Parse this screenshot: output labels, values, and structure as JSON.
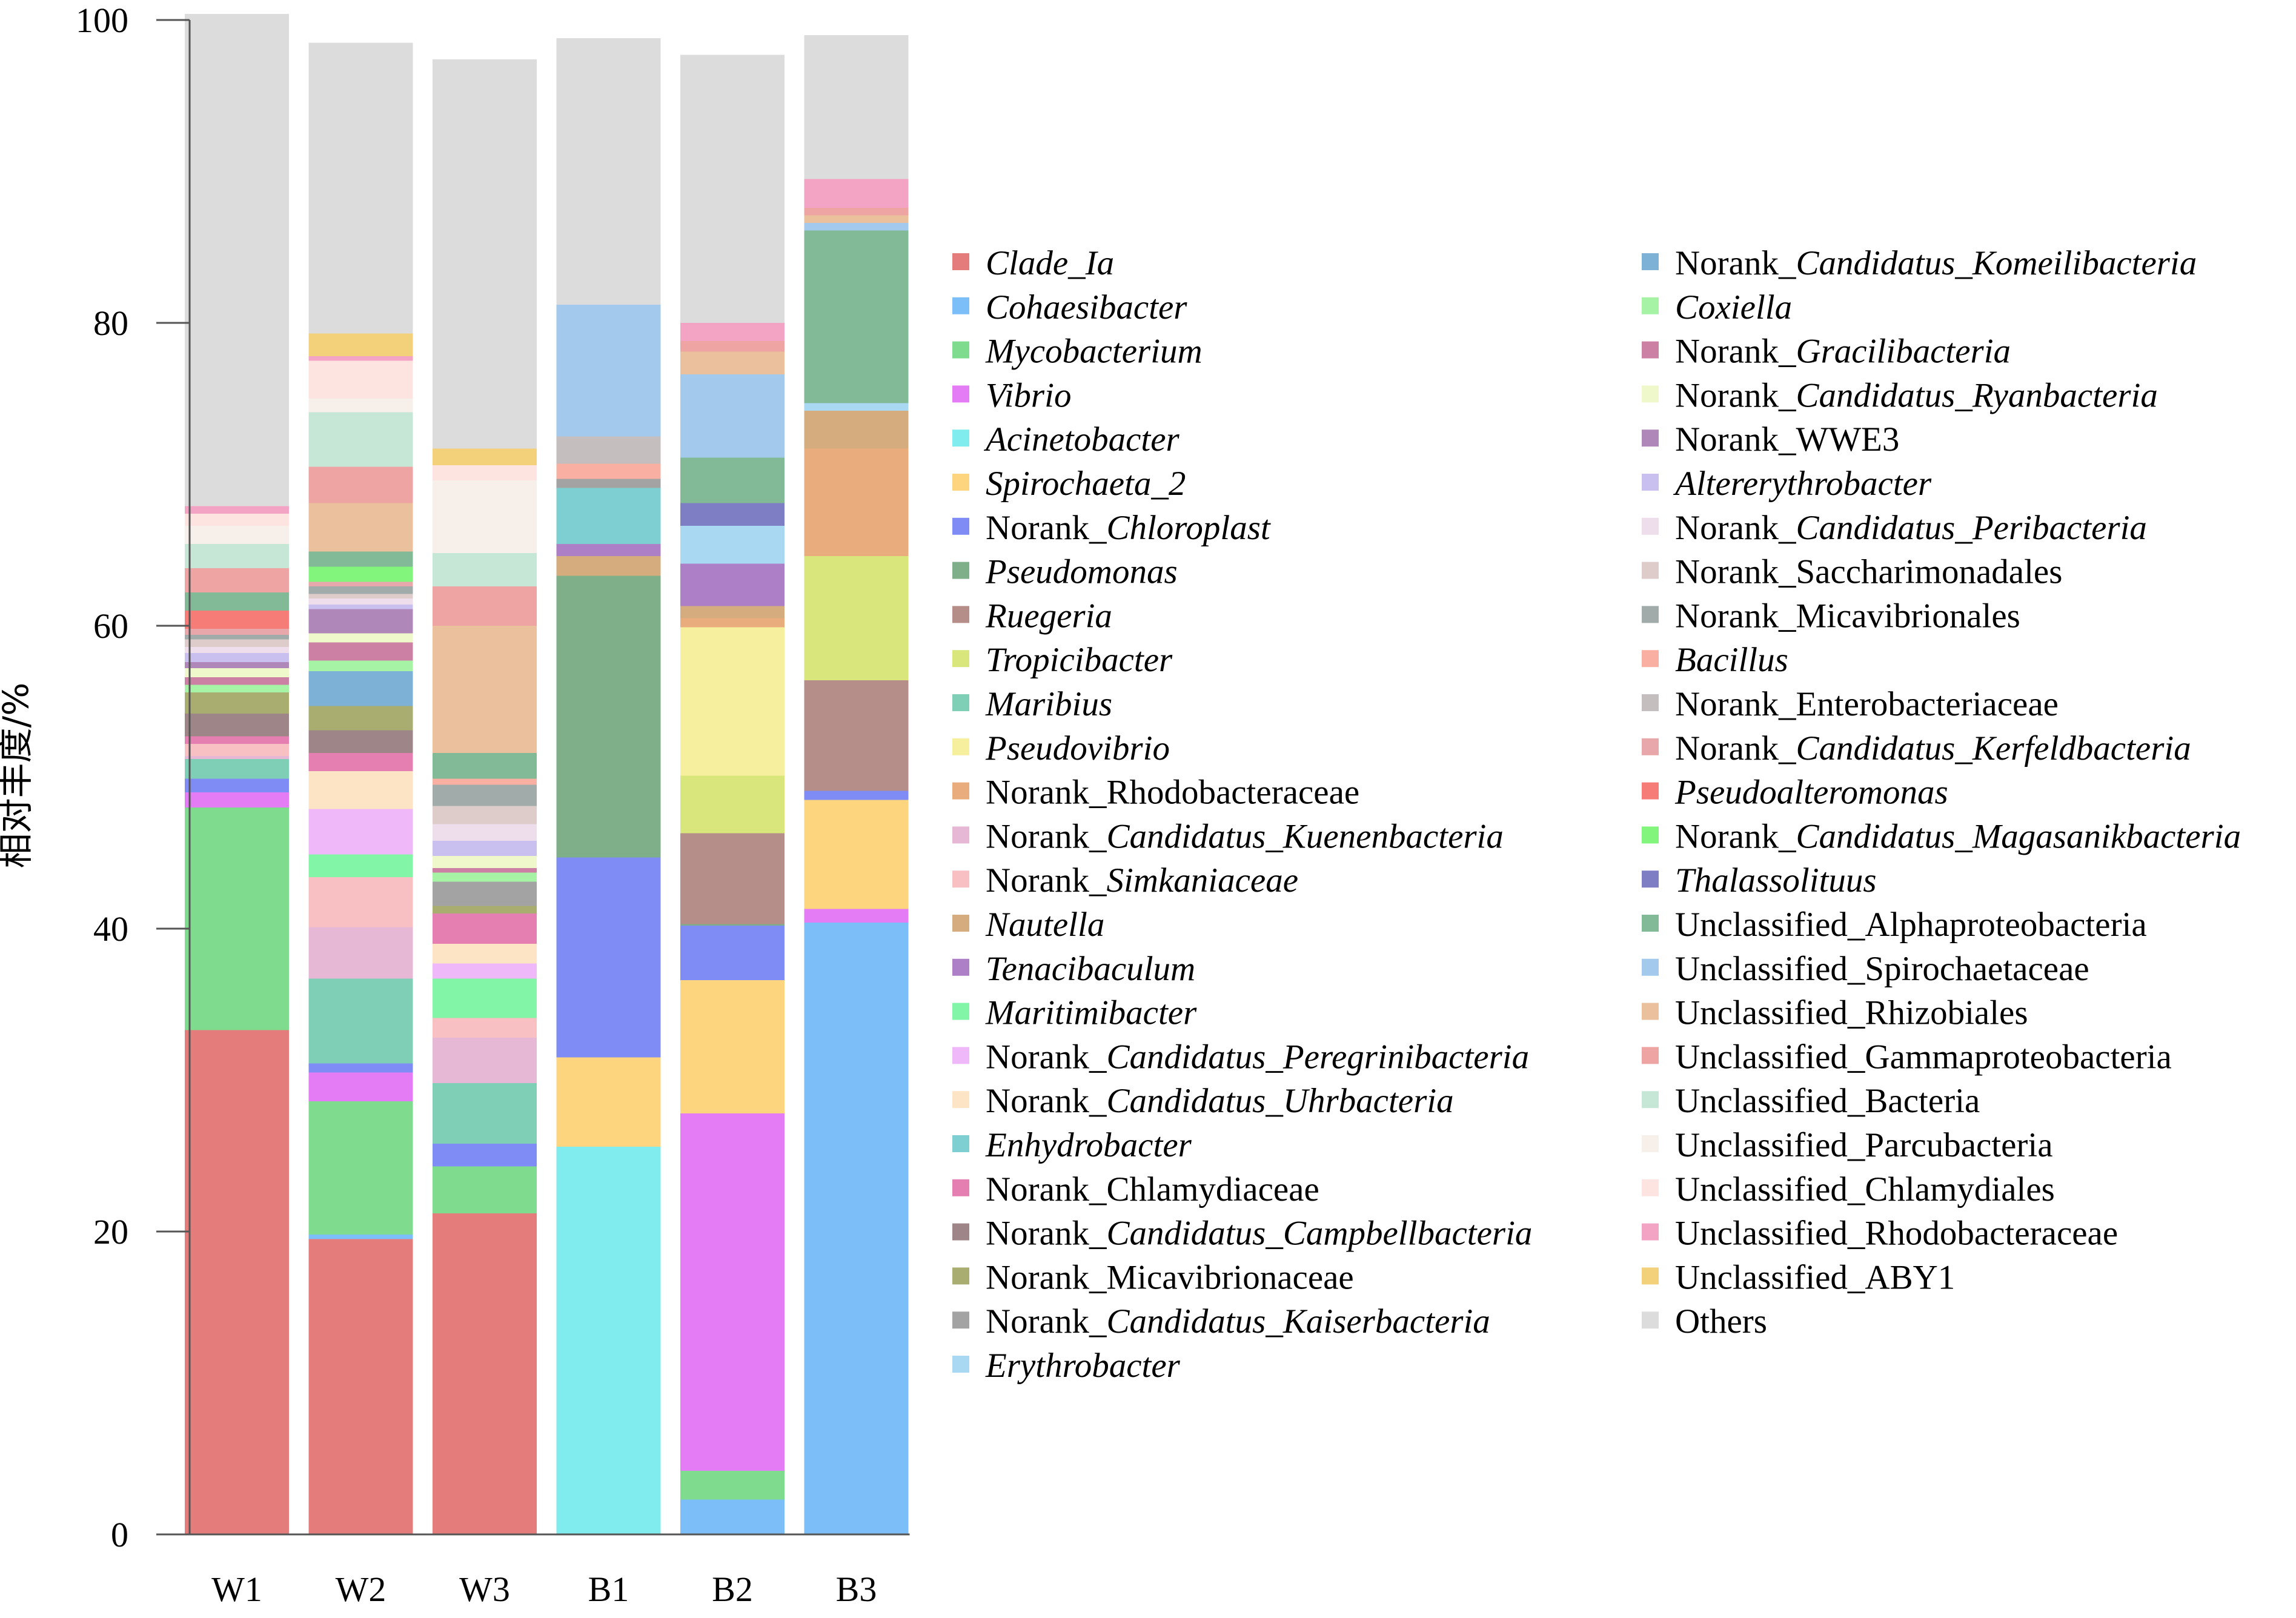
{
  "chart_data": {
    "type": "bar",
    "stacked": true,
    "categories": [
      "W1",
      "W2",
      "W3",
      "B1",
      "B2",
      "B3"
    ],
    "ylabel": "相对丰度/%",
    "ylim": [
      0,
      100
    ],
    "yticks": [
      0,
      20,
      40,
      60,
      80,
      100
    ],
    "legend_position": "right",
    "series": [
      {
        "name": "Clade_Ia",
        "parts": [
          {
            "t": "Clade_Ia",
            "i": true
          }
        ],
        "color": "#E47C7C",
        "values": [
          33.3,
          19.5,
          21.2,
          0,
          0,
          0
        ]
      },
      {
        "name": "Cohaesibacter",
        "parts": [
          {
            "t": "Cohaesibacter",
            "i": true
          }
        ],
        "color": "#7CBFF8",
        "values": [
          0,
          0.3,
          0,
          0,
          2.3,
          40.4
        ]
      },
      {
        "name": "Mycobacterium",
        "parts": [
          {
            "t": "Mycobacterium",
            "i": true
          }
        ],
        "color": "#7FDB8D",
        "values": [
          14.7,
          8.8,
          3.1,
          0,
          1.9,
          0
        ]
      },
      {
        "name": "Vibrio",
        "parts": [
          {
            "t": "Vibrio",
            "i": true
          }
        ],
        "color": "#E47CF5",
        "values": [
          1.0,
          1.9,
          0,
          0,
          23.6,
          0.9
        ]
      },
      {
        "name": "Acinetobacter",
        "parts": [
          {
            "t": "Acinetobacter",
            "i": true
          }
        ],
        "color": "#80ECEE",
        "values": [
          0,
          0,
          0,
          25.6,
          0,
          0
        ]
      },
      {
        "name": "Spirochaeta_2",
        "parts": [
          {
            "t": "Spirochaeta_2",
            "i": true
          }
        ],
        "color": "#FDD57E",
        "values": [
          0,
          0,
          0,
          5.9,
          8.8,
          7.2
        ]
      },
      {
        "name": "Norank_Chloroplast",
        "parts": [
          {
            "t": "Norank_"
          },
          {
            "t": "Chloroplast",
            "i": true
          }
        ],
        "color": "#7F8CF5",
        "values": [
          0.9,
          0.6,
          1.5,
          13.2,
          3.6,
          0.6
        ]
      },
      {
        "name": "Pseudomonas",
        "parts": [
          {
            "t": "Pseudomonas",
            "i": true
          }
        ],
        "color": "#7FAF88",
        "values": [
          0,
          0,
          0,
          18.6,
          0.1,
          0
        ]
      },
      {
        "name": "Ruegeria",
        "parts": [
          {
            "t": "Ruegeria",
            "i": true
          }
        ],
        "color": "#B58E8A",
        "values": [
          0,
          0,
          0,
          0,
          6.0,
          7.3
        ]
      },
      {
        "name": "Tropicibacter",
        "parts": [
          {
            "t": "Tropicibacter",
            "i": true
          }
        ],
        "color": "#D9E67B",
        "values": [
          0,
          0,
          0,
          0,
          3.8,
          8.2
        ]
      },
      {
        "name": "Maribius",
        "parts": [
          {
            "t": "Maribius",
            "i": true
          }
        ],
        "color": "#7FCEB6",
        "values": [
          1.3,
          5.6,
          4.0,
          0,
          0,
          0
        ]
      },
      {
        "name": "Pseudovibrio",
        "parts": [
          {
            "t": "Pseudovibrio",
            "i": true
          }
        ],
        "color": "#F6EF9E",
        "values": [
          0,
          0,
          0,
          0,
          9.8,
          0
        ]
      },
      {
        "name": "Norank_Rhodobacteraceae",
        "parts": [
          {
            "t": "Norank_Rhodobacteraceae"
          }
        ],
        "color": "#E9AC7C",
        "values": [
          0,
          0,
          0,
          0,
          0.6,
          7.1
        ]
      },
      {
        "name": "Norank_Candidatus_Kuenenbacteria",
        "parts": [
          {
            "t": "Norank_"
          },
          {
            "t": "Candidatus_Kuenenbacteria",
            "i": true
          }
        ],
        "color": "#E6B8D5",
        "values": [
          0.2,
          3.4,
          3.0,
          0,
          0,
          0
        ]
      },
      {
        "name": "Norank_Simkaniaceae",
        "parts": [
          {
            "t": "Norank_"
          },
          {
            "t": "Simkaniaceae",
            "i": true
          }
        ],
        "color": "#F8C0C3",
        "values": [
          0.8,
          3.3,
          1.3,
          0,
          0,
          0
        ]
      },
      {
        "name": "Nautella",
        "parts": [
          {
            "t": "Nautella",
            "i": true
          }
        ],
        "color": "#D5AC7E",
        "values": [
          0,
          0,
          0,
          1.3,
          0.8,
          2.5
        ]
      },
      {
        "name": "Tenacibaculum",
        "parts": [
          {
            "t": "Tenacibaculum",
            "i": true
          }
        ],
        "color": "#AC7FC6",
        "values": [
          0,
          0,
          0,
          0.8,
          2.8,
          0
        ]
      },
      {
        "name": "Maritimibacter",
        "parts": [
          {
            "t": "Maritimibacter",
            "i": true
          }
        ],
        "color": "#82F5A6",
        "values": [
          0,
          1.5,
          2.6,
          0,
          0,
          0
        ]
      },
      {
        "name": "Norank_Candidatus_Peregrinibacteria",
        "parts": [
          {
            "t": "Norank_"
          },
          {
            "t": "Candidatus_Peregrinibacteria",
            "i": true
          }
        ],
        "color": "#EFB8F8",
        "values": [
          0,
          3.0,
          1.0,
          0,
          0,
          0
        ]
      },
      {
        "name": "Norank_Candidatus_Uhrbacteria",
        "parts": [
          {
            "t": "Norank_"
          },
          {
            "t": "Candidatus_Uhrbacteria",
            "i": true
          }
        ],
        "color": "#FDE4C5",
        "values": [
          0,
          2.5,
          1.3,
          0,
          0,
          0
        ]
      },
      {
        "name": "Enhydrobacter",
        "parts": [
          {
            "t": "Enhydrobacter",
            "i": true
          }
        ],
        "color": "#7ECFD1",
        "values": [
          0,
          0,
          0,
          3.7,
          0,
          0
        ]
      },
      {
        "name": "Norank_Chlamydiaceae",
        "parts": [
          {
            "t": "Norank_Chlamydiaceae"
          }
        ],
        "color": "#E67FB1",
        "values": [
          0.5,
          1.2,
          2.0,
          0,
          0,
          0
        ]
      },
      {
        "name": "Norank_Candidatus_Campbellbacteria",
        "parts": [
          {
            "t": "Norank_"
          },
          {
            "t": "Candidatus_Campbellbacteria",
            "i": true
          }
        ],
        "color": "#9E8587",
        "values": [
          1.5,
          1.5,
          0,
          0,
          0,
          0
        ]
      },
      {
        "name": "Norank_Micavibrionaceae",
        "parts": [
          {
            "t": "Norank_Micavibrionaceae"
          }
        ],
        "color": "#A9AE70",
        "values": [
          1.4,
          1.6,
          0.5,
          0,
          0,
          0
        ]
      },
      {
        "name": "Norank_Candidatus_Kaiserbacteria",
        "parts": [
          {
            "t": "Norank_"
          },
          {
            "t": "Candidatus_Kaiserbacteria",
            "i": true
          }
        ],
        "color": "#A3A3A3",
        "values": [
          0,
          0,
          1.6,
          0.6,
          0,
          0
        ]
      },
      {
        "name": "Erythrobacter",
        "parts": [
          {
            "t": "Erythrobacter",
            "i": true
          }
        ],
        "color": "#A9D8F3",
        "values": [
          0,
          0,
          0,
          0,
          2.5,
          0.5
        ]
      },
      {
        "name": "Norank_Candidatus_Komeilibacteria",
        "parts": [
          {
            "t": "Norank_"
          },
          {
            "t": "Candidatus_Komeilibacteria",
            "i": true
          }
        ],
        "color": "#7EB1D6",
        "values": [
          0,
          2.3,
          0,
          0,
          0,
          0
        ]
      },
      {
        "name": "Coxiella",
        "parts": [
          {
            "t": "Coxiella",
            "i": true
          }
        ],
        "color": "#A6F3A6",
        "values": [
          0.5,
          0.7,
          0.6,
          0,
          0,
          0
        ]
      },
      {
        "name": "Norank_Gracilibacteria",
        "parts": [
          {
            "t": "Norank_"
          },
          {
            "t": "Gracilibacteria",
            "i": true
          }
        ],
        "color": "#CC80A4",
        "values": [
          0.5,
          1.2,
          0.3,
          0,
          0,
          0
        ]
      },
      {
        "name": "Norank_Candidatus_Ryanbacteria",
        "parts": [
          {
            "t": "Norank_"
          },
          {
            "t": "Candidatus_Ryanbacteria",
            "i": true
          }
        ],
        "color": "#EEF8CA",
        "values": [
          0.6,
          0.6,
          0.8,
          0,
          0,
          0
        ]
      },
      {
        "name": "Norank_WWE3",
        "parts": [
          {
            "t": "Norank_WWE3"
          }
        ],
        "color": "#B087B9",
        "values": [
          0.4,
          1.6,
          0,
          0,
          0,
          0
        ]
      },
      {
        "name": "Altererythrobacter",
        "parts": [
          {
            "t": "Altererythrobacter",
            "i": true
          }
        ],
        "color": "#C9C0F0",
        "values": [
          0.6,
          0.3,
          1.0,
          0,
          0,
          0
        ]
      },
      {
        "name": "Norank_Candidatus_Peribacteria",
        "parts": [
          {
            "t": "Norank_"
          },
          {
            "t": "Candidatus_Peribacteria",
            "i": true
          }
        ],
        "color": "#EEDDEB",
        "values": [
          0.4,
          0.4,
          1.1,
          0,
          0,
          0
        ]
      },
      {
        "name": "Norank_Saccharimonadales",
        "parts": [
          {
            "t": "Norank_Saccharimonadales"
          }
        ],
        "color": "#DECCCB",
        "values": [
          0.5,
          0.3,
          1.2,
          0,
          0,
          0
        ]
      },
      {
        "name": "Norank_Micavibrionales",
        "parts": [
          {
            "t": "Norank_Micavibrionales"
          }
        ],
        "color": "#A0ABAA",
        "values": [
          0.3,
          0.5,
          1.4,
          0,
          0,
          0
        ]
      },
      {
        "name": "Bacillus",
        "parts": [
          {
            "t": "Bacillus",
            "i": true
          }
        ],
        "color": "#F9B0A2",
        "values": [
          0,
          0,
          0.4,
          1.0,
          0,
          0
        ]
      },
      {
        "name": "Norank_Enterobacteriaceae",
        "parts": [
          {
            "t": "Norank_Enterobacteriaceae"
          }
        ],
        "color": "#C4BEBE",
        "values": [
          0,
          0,
          0,
          1.8,
          0,
          0
        ]
      },
      {
        "name": "Norank_Candidatus_Kerfeldbacteria",
        "parts": [
          {
            "t": "Norank_"
          },
          {
            "t": "Candidatus_Kerfeldbacteria",
            "i": true
          }
        ],
        "color": "#E8A7AA",
        "values": [
          0.4,
          0.3,
          0,
          0,
          0,
          0
        ]
      },
      {
        "name": "Pseudoalteromonas",
        "parts": [
          {
            "t": "Pseudoalteromonas",
            "i": true
          }
        ],
        "color": "#F57C77",
        "values": [
          1.2,
          0,
          0,
          0,
          0,
          0
        ]
      },
      {
        "name": "Norank_Candidatus_Magasanikbacteria",
        "parts": [
          {
            "t": "Norank_"
          },
          {
            "t": "Candidatus_Magasanikbacteria",
            "i": true
          }
        ],
        "color": "#82F57C",
        "values": [
          0,
          1.0,
          0,
          0,
          0,
          0
        ]
      },
      {
        "name": "Thalassolituus",
        "parts": [
          {
            "t": "Thalassolituus",
            "i": true
          }
        ],
        "color": "#7E7EC4",
        "values": [
          0,
          0,
          0,
          0,
          1.5,
          0
        ]
      },
      {
        "name": "Unclassified_Alphaproteobacteria",
        "parts": [
          {
            "t": "Unclassified_Alphaproteobacteria"
          }
        ],
        "color": "#82B996",
        "values": [
          1.2,
          1.0,
          1.7,
          0,
          3.0,
          11.4
        ]
      },
      {
        "name": "Unclassified_Spirochaetaceae",
        "parts": [
          {
            "t": "Unclassified_Spirochaetaceae"
          }
        ],
        "color": "#A3C9EC",
        "values": [
          0,
          0,
          0,
          8.7,
          5.5,
          0.5
        ]
      },
      {
        "name": "Unclassified_Rhizobiales",
        "parts": [
          {
            "t": "Unclassified_Rhizobiales"
          }
        ],
        "color": "#EBC09C",
        "values": [
          0,
          3.2,
          8.4,
          0,
          1.5,
          0.5
        ]
      },
      {
        "name": "Unclassified_Gammaproteobacteria",
        "parts": [
          {
            "t": "Unclassified_Gammaproteobacteria"
          }
        ],
        "color": "#EFA4A4",
        "values": [
          1.6,
          2.4,
          2.6,
          0,
          0.7,
          0.5
        ]
      },
      {
        "name": "Unclassified_Bacteria",
        "parts": [
          {
            "t": "Unclassified_Bacteria"
          }
        ],
        "color": "#C7E7D6",
        "values": [
          1.6,
          3.6,
          2.2,
          0,
          0,
          0
        ]
      },
      {
        "name": "Unclassified_Parcubacteria",
        "parts": [
          {
            "t": "Unclassified_Parcubacteria"
          }
        ],
        "color": "#F7EFEA",
        "values": [
          1.2,
          0.9,
          4.8,
          0,
          0,
          0
        ]
      },
      {
        "name": "Unclassified_Chlamydiales",
        "parts": [
          {
            "t": "Unclassified_Chlamydiales"
          }
        ],
        "color": "#FDE4E0",
        "values": [
          0.8,
          2.5,
          1.0,
          0,
          0,
          0
        ]
      },
      {
        "name": "Unclassified_Rhodobacteraceae",
        "parts": [
          {
            "t": "Unclassified_Rhodobacteraceae"
          }
        ],
        "color": "#F3A3C3",
        "values": [
          0.5,
          0.3,
          0,
          0,
          1.2,
          1.9
        ]
      },
      {
        "name": "Unclassified_ABY1",
        "parts": [
          {
            "t": "Unclassified_ABY1"
          }
        ],
        "color": "#F3D07A",
        "values": [
          0,
          1.5,
          1.1,
          0,
          0,
          0
        ]
      },
      {
        "name": "Others",
        "parts": [
          {
            "t": "Others"
          }
        ],
        "color": "#DCDCDC",
        "values": [
          32.5,
          19.2,
          25.7,
          17.6,
          17.7,
          9.5
        ]
      }
    ]
  }
}
